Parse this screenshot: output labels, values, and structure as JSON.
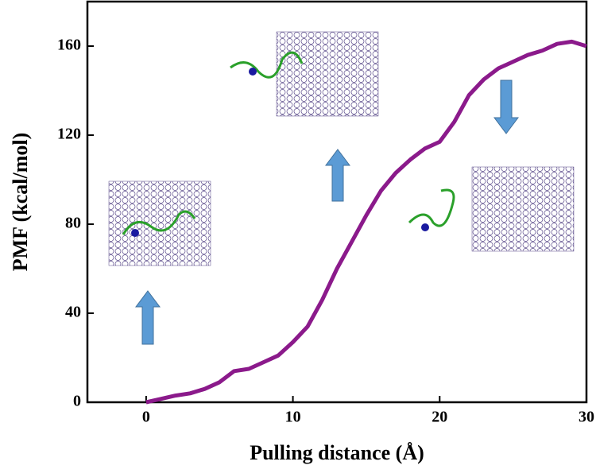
{
  "chart_data": {
    "type": "line",
    "xlabel": "Pulling distance (Å)",
    "ylabel": "PMF (kcal/mol)",
    "x": [
      0,
      1,
      2,
      3,
      4,
      5,
      6,
      7,
      8,
      9,
      10,
      11,
      12,
      13,
      14,
      15,
      16,
      17,
      18,
      19,
      20,
      21,
      22,
      23,
      24,
      25,
      26,
      27,
      28,
      29,
      30
    ],
    "values": [
      0,
      1.5,
      3,
      4,
      6,
      9,
      14,
      15,
      18,
      21,
      27,
      34,
      46,
      60,
      72,
      84,
      95,
      103,
      109,
      114,
      117,
      126,
      138,
      145,
      150,
      153,
      156,
      158,
      161,
      162,
      160
    ],
    "color": "#8b1a8b",
    "xlim": [
      -4,
      30
    ],
    "xticks": [
      0,
      10,
      20,
      30
    ],
    "ylim": [
      0,
      180
    ],
    "yticks": [
      0,
      40,
      80,
      120,
      160
    ]
  }
}
